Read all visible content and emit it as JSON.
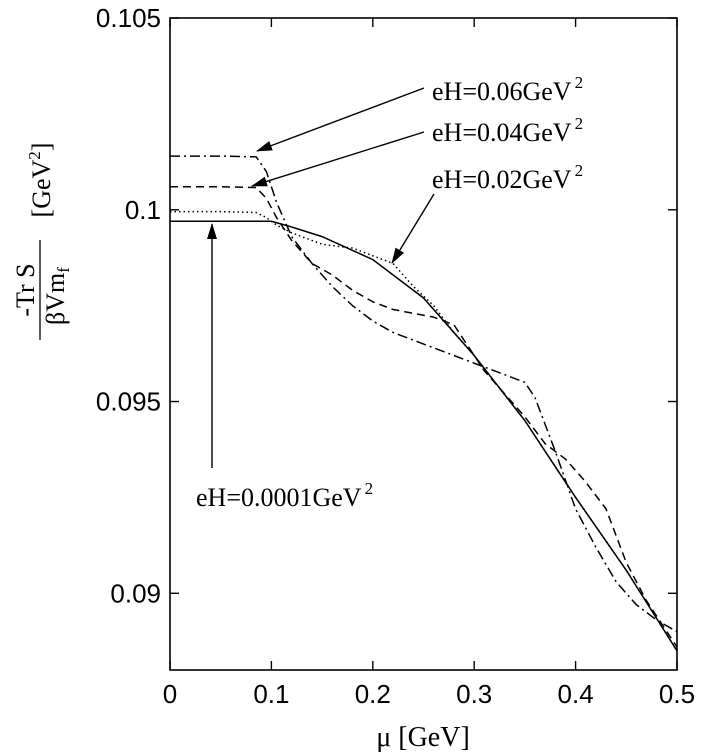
{
  "chart_data": {
    "type": "line",
    "xlabel": "μ [GeV]",
    "ylabel": {
      "numerator": "-Tr S",
      "denominator": "βVm",
      "denominator_sub": "f",
      "unit": "[GeV",
      "unit_sup": "2",
      "unit_close": "]"
    },
    "xlim": [
      0,
      0.5
    ],
    "ylim": [
      0.088,
      0.105
    ],
    "xticks": [
      {
        "value": 0,
        "label": "0"
      },
      {
        "value": 0.1,
        "label": "0.1"
      },
      {
        "value": 0.2,
        "label": "0.2"
      },
      {
        "value": 0.3,
        "label": "0.3"
      },
      {
        "value": 0.4,
        "label": "0.4"
      },
      {
        "value": 0.5,
        "label": "0.5"
      }
    ],
    "yticks": [
      {
        "value": 0.09,
        "label": "0.09"
      },
      {
        "value": 0.095,
        "label": "0.095"
      },
      {
        "value": 0.1,
        "label": "0.1"
      },
      {
        "value": 0.105,
        "label": "0.105"
      }
    ],
    "grid": false,
    "series": [
      {
        "key": "eH0001",
        "dash": "solid",
        "x": [
          0,
          0.05,
          0.1,
          0.12,
          0.15,
          0.2,
          0.25,
          0.3,
          0.35,
          0.4,
          0.45,
          0.5
        ],
        "y": [
          0.0997,
          0.0997,
          0.0997,
          0.09955,
          0.0993,
          0.0987,
          0.0977,
          0.0962,
          0.0945,
          0.0925,
          0.0906,
          0.0885
        ]
      },
      {
        "key": "eH002",
        "dash": "dotted",
        "x": [
          0,
          0.05,
          0.085,
          0.095,
          0.105,
          0.12,
          0.15,
          0.18,
          0.2,
          0.22,
          0.24,
          0.26,
          0.28,
          0.3,
          0.35,
          0.4,
          0.45,
          0.5
        ],
        "y": [
          0.09995,
          0.09995,
          0.09993,
          0.0998,
          0.0996,
          0.0994,
          0.0991,
          0.099,
          0.0988,
          0.0986,
          0.098,
          0.0975,
          0.0968,
          0.0962,
          0.0945,
          0.0925,
          0.0906,
          0.0885
        ]
      },
      {
        "key": "eH004",
        "dash": "dashed",
        "x": [
          0,
          0.05,
          0.085,
          0.095,
          0.105,
          0.12,
          0.14,
          0.16,
          0.18,
          0.2,
          0.22,
          0.24,
          0.26,
          0.28,
          0.29,
          0.31,
          0.33,
          0.35,
          0.37,
          0.39,
          0.41,
          0.43,
          0.45,
          0.47,
          0.5
        ],
        "y": [
          0.1006,
          0.1006,
          0.10058,
          0.1003,
          0.0998,
          0.0992,
          0.0986,
          0.0983,
          0.0979,
          0.0976,
          0.0974,
          0.0973,
          0.0972,
          0.097,
          0.0966,
          0.0958,
          0.0952,
          0.0946,
          0.0939,
          0.0935,
          0.0929,
          0.0922,
          0.0908,
          0.0898,
          0.0886
        ]
      },
      {
        "key": "eH006",
        "dash": "dashdot",
        "x": [
          0,
          0.05,
          0.085,
          0.095,
          0.105,
          0.12,
          0.14,
          0.16,
          0.18,
          0.2,
          0.22,
          0.24,
          0.26,
          0.28,
          0.3,
          0.32,
          0.34,
          0.35,
          0.36,
          0.38,
          0.4,
          0.42,
          0.44,
          0.46,
          0.48,
          0.5
        ],
        "y": [
          0.1014,
          0.1014,
          0.10138,
          0.101,
          0.1002,
          0.0993,
          0.0986,
          0.098,
          0.0975,
          0.0971,
          0.0968,
          0.0966,
          0.0964,
          0.0962,
          0.096,
          0.0958,
          0.0956,
          0.0955,
          0.0951,
          0.0937,
          0.0922,
          0.0912,
          0.0903,
          0.0897,
          0.0893,
          0.089
        ]
      }
    ],
    "annotations": [
      {
        "key": "a006",
        "series": "eH006",
        "text": "eH=0.06GeV",
        "sup": "2"
      },
      {
        "key": "a004",
        "series": "eH004",
        "text": "eH=0.04GeV",
        "sup": "2"
      },
      {
        "key": "a002",
        "series": "eH002",
        "text": "eH=0.02GeV",
        "sup": "2"
      },
      {
        "key": "a0001",
        "series": "eH0001",
        "text": "eH=0.0001GeV",
        "sup": "2"
      }
    ]
  }
}
